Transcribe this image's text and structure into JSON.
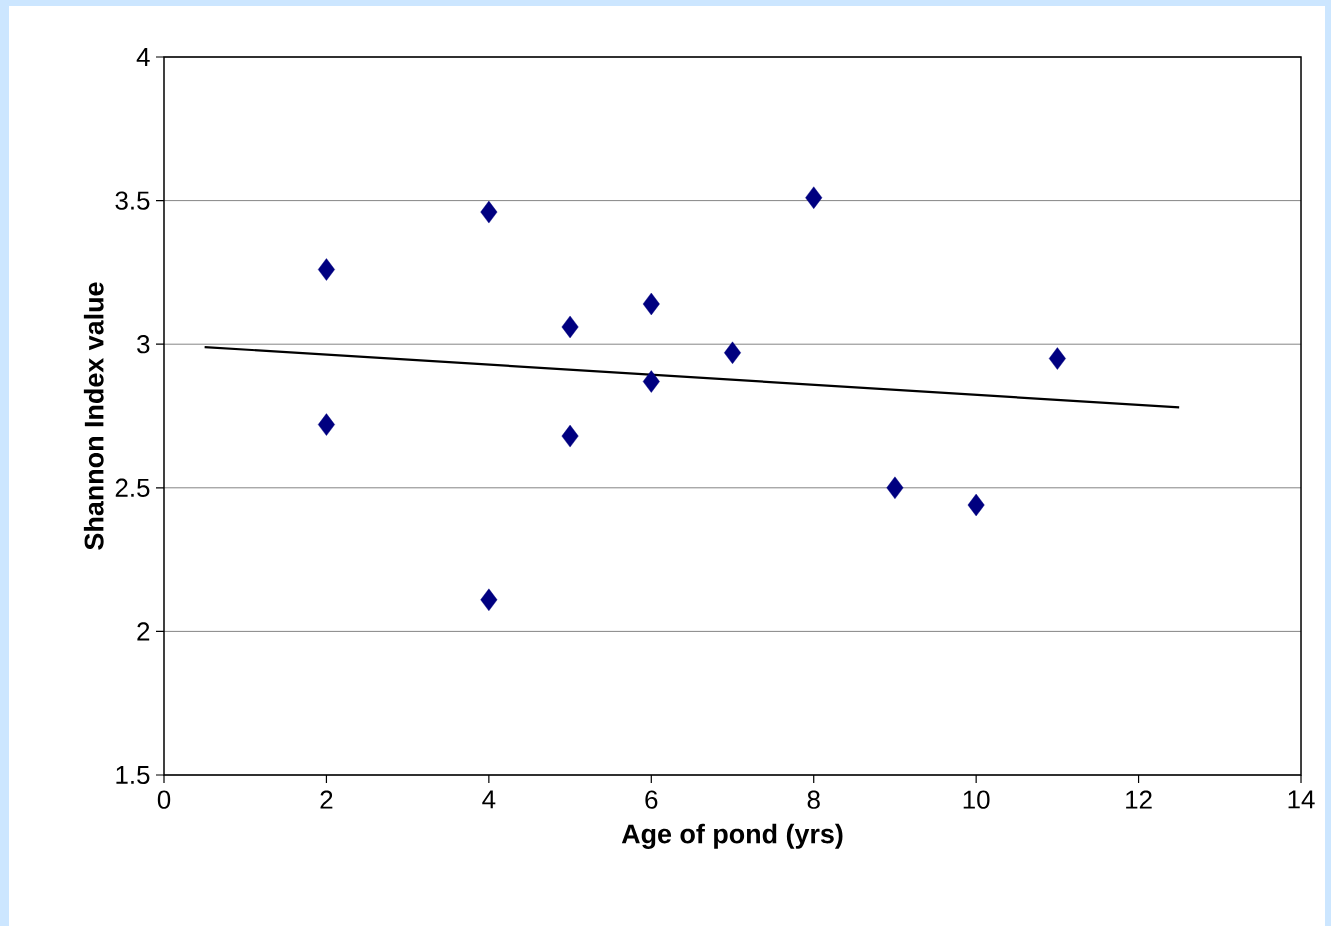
{
  "chart_data": {
    "type": "scatter",
    "xlabel": "Age of pond (yrs)",
    "ylabel": "Shannon Index value",
    "xlim": [
      0,
      14
    ],
    "ylim": [
      1.5,
      4
    ],
    "xticks": [
      0,
      2,
      4,
      6,
      8,
      10,
      12,
      14
    ],
    "yticks": [
      1.5,
      2,
      2.5,
      3,
      3.5,
      4
    ],
    "grid": "y",
    "series": [
      {
        "marker": "diamond",
        "color": "#000080",
        "x": [
          2,
          2,
          4,
          4,
          5,
          5,
          6,
          6,
          7,
          8,
          9,
          10,
          11
        ],
        "values": [
          3.26,
          2.72,
          3.46,
          2.11,
          3.06,
          2.68,
          3.14,
          2.87,
          2.97,
          3.51,
          2.5,
          2.44,
          2.95
        ]
      },
      {
        "type": "line",
        "color": "#000000",
        "x": [
          0.5,
          12.5
        ],
        "values": [
          2.99,
          2.78
        ]
      }
    ]
  }
}
